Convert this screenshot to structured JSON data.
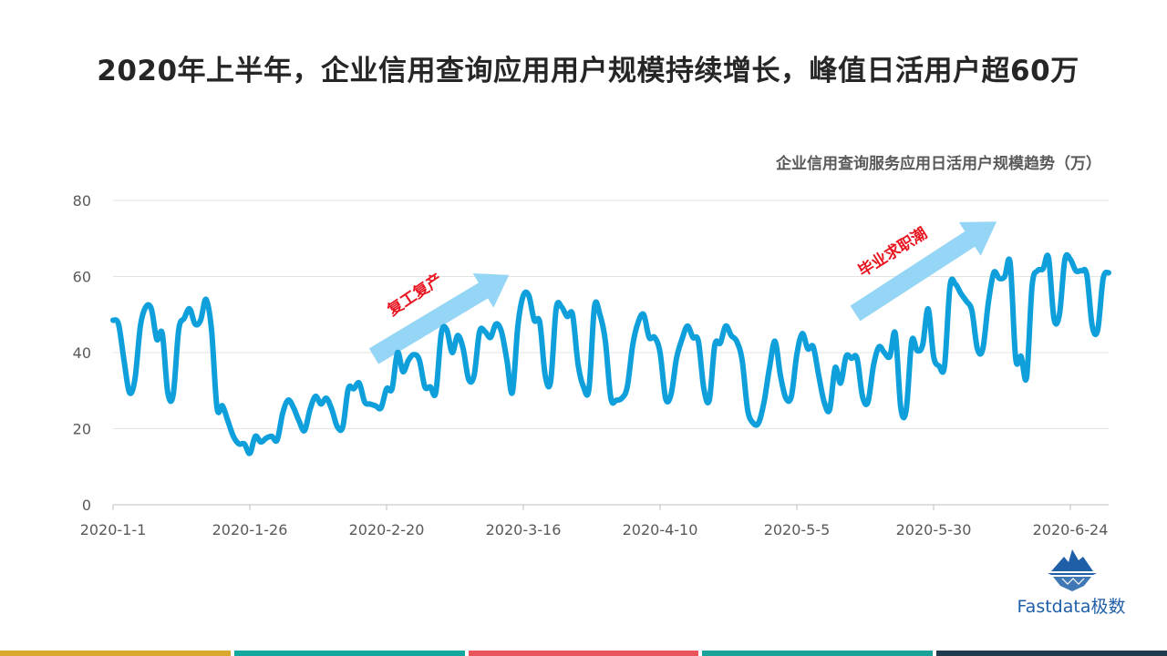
{
  "page": {
    "title": "2020年上半年，企业信用查询应用用户规模持续增长，峰值日活用户超60万"
  },
  "logo": {
    "text": "Fastdata极数"
  },
  "footer": {
    "colors": [
      "#d9a82f",
      "#13a89e",
      "#e8555c",
      "#1aa39a",
      "#1f3a4d"
    ]
  },
  "chart_data": {
    "type": "line",
    "title": "企业信用查询服务应用日活用户规模趋势（万）",
    "xlabel": "",
    "ylabel": "",
    "ylim": [
      0,
      80
    ],
    "yticks": [
      0,
      20,
      40,
      60,
      80
    ],
    "grid": true,
    "line_color": "#0fa0dc",
    "x_tick_labels": [
      "2020-1-1",
      "2020-1-26",
      "2020-2-20",
      "2020-3-16",
      "2020-4-10",
      "2020-5-5",
      "2020-5-30",
      "2020-6-24"
    ],
    "x_tick_positions": [
      1,
      26,
      51,
      76,
      101,
      126,
      151,
      176
    ],
    "series": [
      {
        "values": [
          48.5,
          47.5,
          38,
          29.5,
          33,
          47,
          52,
          51.5,
          43.5,
          45,
          29.5,
          29,
          46,
          49,
          51.5,
          47.5,
          48.5,
          54,
          46,
          25.5,
          26,
          22,
          18,
          16,
          16,
          13.5,
          18,
          16.5,
          17.5,
          18,
          17,
          24,
          27.5,
          25.5,
          22,
          19.5,
          25,
          28.5,
          26.5,
          28,
          25,
          20.5,
          20.5,
          30.5,
          30.5,
          32,
          27,
          26.5,
          26,
          25.5,
          30.5,
          30.5,
          40,
          35,
          38,
          39.5,
          38,
          31,
          31,
          29.5,
          45,
          46,
          40,
          44.5,
          41,
          33,
          34,
          45.5,
          45.5,
          44,
          47.5,
          45.5,
          38,
          29.5,
          47,
          55,
          55,
          48.5,
          48,
          34,
          32.5,
          51.5,
          52,
          49.5,
          50,
          37,
          31,
          30.5,
          52,
          50,
          43,
          28,
          27.5,
          28,
          31,
          42,
          48,
          50,
          44,
          44,
          40,
          28,
          29,
          38.5,
          43.5,
          47,
          44,
          43,
          30.5,
          27.5,
          42,
          42.5,
          47,
          44.5,
          43,
          38,
          25,
          21.5,
          21.5,
          27,
          36,
          43,
          34,
          28,
          28.5,
          39.5,
          45,
          41,
          41.5,
          34,
          27,
          25,
          36,
          32,
          39,
          38.5,
          38.5,
          28.5,
          27,
          36.5,
          41.5,
          40,
          39,
          45,
          25.5,
          25,
          43,
          40.5,
          42,
          51.5,
          39,
          36.5,
          36.5,
          57.5,
          58,
          55.5,
          53.5,
          51,
          41,
          41,
          53,
          61,
          59.5,
          60,
          63.5,
          38.5,
          39,
          33.5,
          57.5,
          61.5,
          62,
          65,
          49,
          50,
          64.5,
          64.5,
          61.5,
          61.5,
          60.5,
          47,
          46,
          59.5,
          61
        ]
      }
    ],
    "annotations": [
      {
        "text": "复工复产",
        "color": "#e8141f"
      },
      {
        "text": "毕业求职潮",
        "color": "#e8141f"
      }
    ]
  }
}
